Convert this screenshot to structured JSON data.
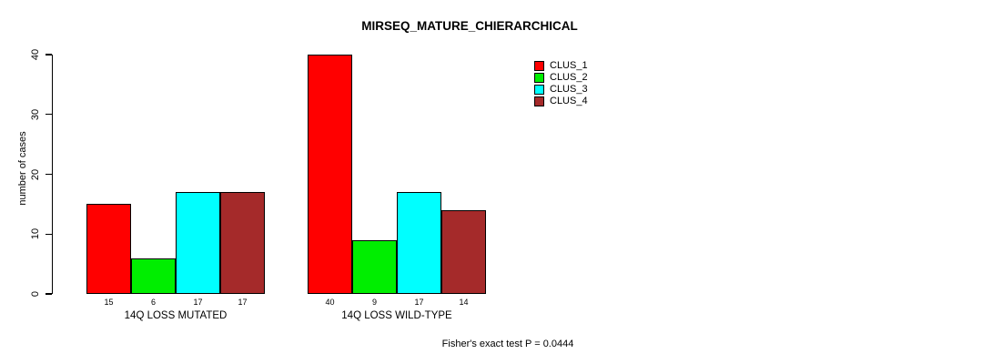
{
  "title": "MIRSEQ_MATURE_CHIERARCHICAL",
  "y_axis": {
    "label": "number of cases"
  },
  "footer": {
    "annotation": "Fisher's exact test P = 0.0444"
  },
  "chart_data": {
    "type": "bar",
    "title": "MIRSEQ_MATURE_CHIERARCHICAL",
    "xlabel": "",
    "ylabel": "number of cases",
    "ylim": [
      0,
      40
    ],
    "yticks": [
      0,
      10,
      20,
      30,
      40
    ],
    "categories": [
      "14Q LOSS MUTATED",
      "14Q LOSS WILD-TYPE"
    ],
    "series": [
      {
        "name": "CLUS_1",
        "color": "#ff0000",
        "values": [
          15,
          40
        ]
      },
      {
        "name": "CLUS_2",
        "color": "#00ee00",
        "values": [
          6,
          9
        ]
      },
      {
        "name": "CLUS_3",
        "color": "#00ffff",
        "values": [
          17,
          17
        ]
      },
      {
        "name": "CLUS_4",
        "color": "#a52a2a",
        "values": [
          17,
          14
        ]
      }
    ],
    "bar_value_labels": [
      [
        15,
        6,
        17,
        17
      ],
      [
        40,
        9,
        17,
        14
      ]
    ],
    "legend": {
      "position": "top-right",
      "entries": [
        "CLUS_1",
        "CLUS_2",
        "CLUS_3",
        "CLUS_4"
      ]
    },
    "grid": false,
    "bar_border_color": "#000000",
    "background": "#ffffff",
    "annotation": "Fisher's exact test P = 0.0444"
  }
}
